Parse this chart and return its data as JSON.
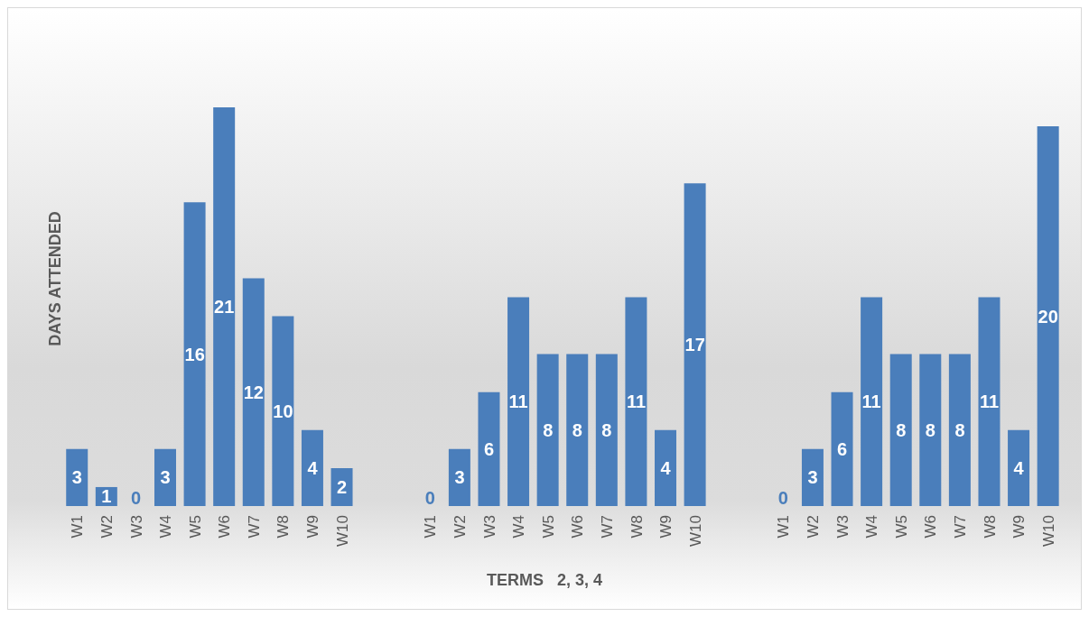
{
  "chart_data": {
    "type": "bar",
    "xlabel": "TERMS   2, 3, 4",
    "ylabel": "DAYS ATTENDED",
    "categories": [
      "W1",
      "W2",
      "W3",
      "W4",
      "W5",
      "W6",
      "W7",
      "W8",
      "W9",
      "W10",
      null,
      null,
      "W1",
      "W2",
      "W3",
      "W4",
      "W5",
      "W6",
      "W7",
      "W8",
      "W9",
      "W10",
      null,
      null,
      "W1",
      "W2",
      "W3",
      "W4",
      "W5",
      "W6",
      "W7",
      "W8",
      "W9",
      "W10"
    ],
    "values": [
      3,
      1,
      0,
      3,
      16,
      21,
      12,
      10,
      4,
      2,
      null,
      null,
      0,
      3,
      6,
      11,
      8,
      8,
      8,
      11,
      4,
      17,
      null,
      null,
      0,
      3,
      6,
      11,
      8,
      8,
      8,
      11,
      4,
      20
    ],
    "color": "#4a7ebb",
    "data_labels": true,
    "grid": false,
    "legend": false
  }
}
